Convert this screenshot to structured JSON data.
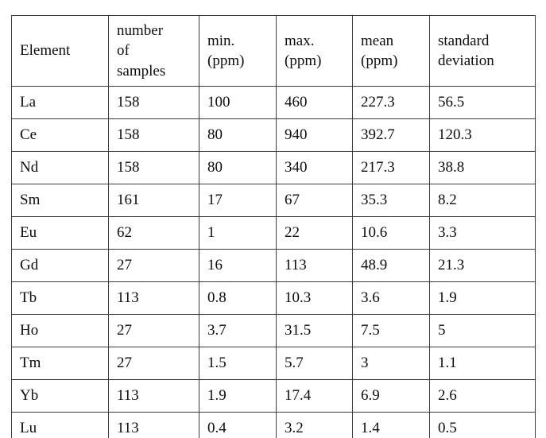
{
  "table": {
    "title": "element-concentration-statistics",
    "columns": [
      {
        "id": "element",
        "label": "Element"
      },
      {
        "id": "samples",
        "label": "number\nof\nsamples"
      },
      {
        "id": "min",
        "label": "min.\n(ppm)"
      },
      {
        "id": "max",
        "label": "max.\n(ppm)"
      },
      {
        "id": "mean",
        "label": "mean\n(ppm)"
      },
      {
        "id": "stddev",
        "label": "standard\ndeviation"
      }
    ],
    "rows": [
      {
        "cells": [
          "La",
          "158",
          "100",
          "460",
          "227.3",
          "56.5"
        ]
      },
      {
        "cells": [
          "Ce",
          "158",
          "80",
          "940",
          "392.7",
          "120.3"
        ]
      },
      {
        "cells": [
          "Nd",
          "158",
          "80",
          "340",
          "217.3",
          "38.8"
        ]
      },
      {
        "cells": [
          "Sm",
          "161",
          "17",
          "67",
          "35.3",
          "8.2"
        ]
      },
      {
        "cells": [
          "Eu",
          "62",
          "1",
          "22",
          "10.6",
          "3.3"
        ]
      },
      {
        "cells": [
          "Gd",
          "27",
          "16",
          "113",
          "48.9",
          "21.3"
        ]
      },
      {
        "cells": [
          "Tb",
          "113",
          "0.8",
          "10.3",
          "3.6",
          "1.9"
        ]
      },
      {
        "cells": [
          "Ho",
          "27",
          "3.7",
          "31.5",
          "7.5",
          "5"
        ]
      },
      {
        "cells": [
          "Tm",
          "27",
          "1.5",
          "5.7",
          "3",
          "1.1"
        ]
      },
      {
        "cells": [
          "Yb",
          "113",
          "1.9",
          "17.4",
          "6.9",
          "2.6"
        ]
      },
      {
        "cells": [
          "Lu",
          "113",
          "0.4",
          "3.2",
          "1.4",
          "0.5"
        ]
      }
    ]
  },
  "colors": {
    "border": "#3d3d3d",
    "text": "#0d0d0d",
    "background": "#ffffff"
  }
}
